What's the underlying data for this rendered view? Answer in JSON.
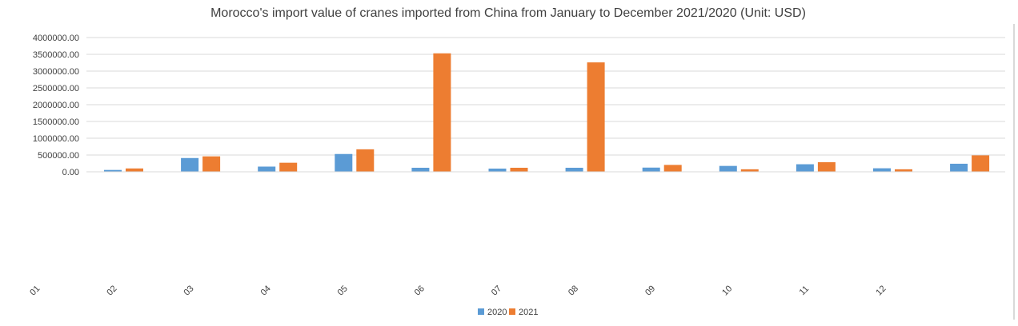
{
  "chart_data": {
    "type": "bar",
    "title": "Morocco's import value of cranes imported from China from January to December 2021/2020 (Unit: USD)",
    "xlabel": "",
    "ylabel": "",
    "ylim": [
      0,
      4000000
    ],
    "y_ticks": [
      "0.00",
      "500000.00",
      "1000000.00",
      "1500000.00",
      "2000000.00",
      "2500000.00",
      "3000000.00",
      "3500000.00",
      "4000000.00"
    ],
    "categories": [
      "01",
      "02",
      "03",
      "04",
      "05",
      "06",
      "07",
      "08",
      "09",
      "10",
      "11",
      "12"
    ],
    "grid": true,
    "legend_position": "bottom",
    "series": [
      {
        "name": "2020",
        "color": "#5b9bd5",
        "values": [
          55000,
          410000,
          155000,
          530000,
          120000,
          95000,
          120000,
          125000,
          175000,
          225000,
          105000,
          240000
        ]
      },
      {
        "name": "2021",
        "color": "#ed7d31",
        "values": [
          100000,
          460000,
          270000,
          670000,
          3530000,
          120000,
          3260000,
          205000,
          75000,
          285000,
          75000,
          490000
        ]
      }
    ]
  }
}
